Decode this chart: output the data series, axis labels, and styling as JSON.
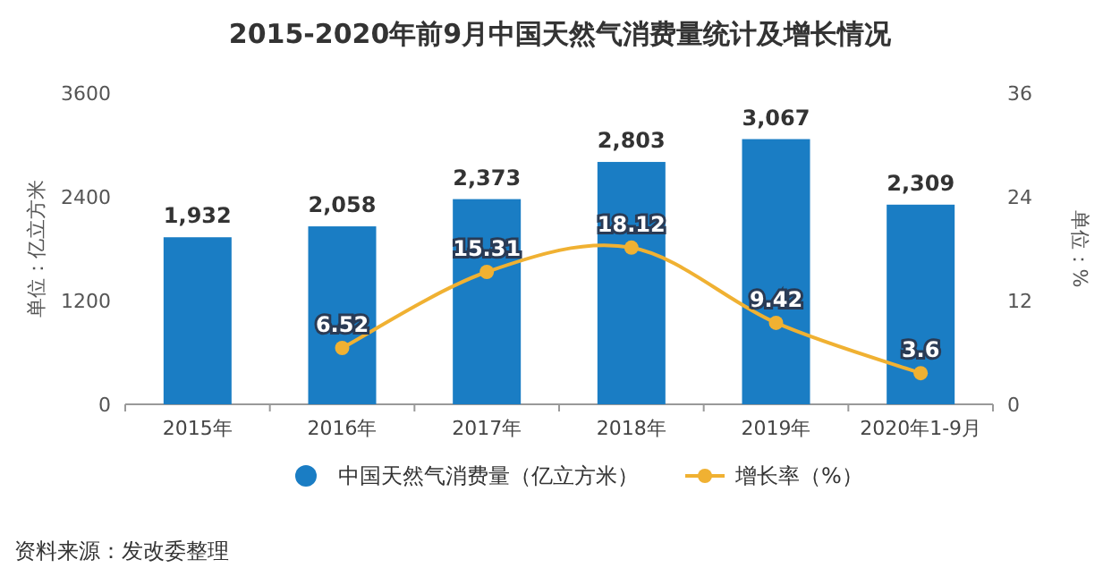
{
  "chart_data": {
    "type": "bar",
    "title": "2015-2020年前9月中国天然气消费量统计及增长情况",
    "categories": [
      "2015年",
      "2016年",
      "2017年",
      "2018年",
      "2019年",
      "2020年1-9月"
    ],
    "series": [
      {
        "name": "中国天然气消费量（亿立方米）",
        "color": "#1a7dc4",
        "values": [
          1932,
          2058,
          2373,
          2803,
          3067,
          2309
        ],
        "value_labels": [
          "1,932",
          "2,058",
          "2,373",
          "2,803",
          "3,067",
          "2,309"
        ]
      },
      {
        "name": "增长率（%）",
        "type": "line",
        "axis": "y2",
        "color": "#f0b132",
        "marker": "circle",
        "values": [
          null,
          6.52,
          15.31,
          18.12,
          9.42,
          3.6
        ]
      }
    ],
    "ylim": [
      0,
      3600
    ],
    "yticks": [
      0,
      1200,
      2400,
      3600
    ],
    "y2lim": [
      0,
      36
    ],
    "y2ticks": [
      0,
      12,
      24,
      36
    ],
    "ylabel": "单位：亿立方米",
    "y2label": "单位：%",
    "legend": "bottom",
    "data_labels": true,
    "annotations": [
      "资料来源：发改委整理"
    ]
  }
}
